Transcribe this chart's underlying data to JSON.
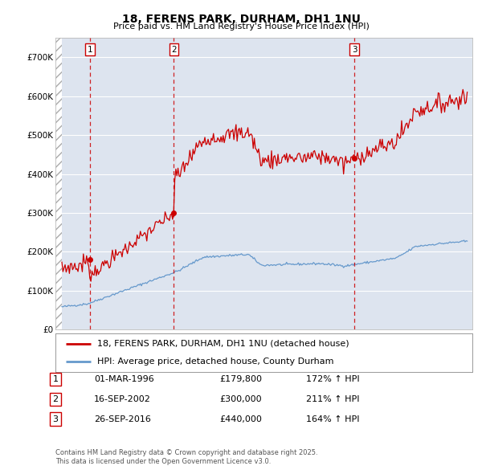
{
  "title": "18, FERENS PARK, DURHAM, DH1 1NU",
  "subtitle": "Price paid vs. HM Land Registry's House Price Index (HPI)",
  "sale_labels": [
    "1",
    "2",
    "3"
  ],
  "sale_pct": [
    "172% ↑ HPI",
    "211% ↑ HPI",
    "164% ↑ HPI"
  ],
  "sale_date_str": [
    "01-MAR-1996",
    "16-SEP-2002",
    "26-SEP-2016"
  ],
  "sale_price_str": [
    "£179,800",
    "£300,000",
    "£440,000"
  ],
  "sale_prices": [
    179800,
    300000,
    440000
  ],
  "sale_times": [
    1996.167,
    2002.708,
    2016.736
  ],
  "legend_line1": "18, FERENS PARK, DURHAM, DH1 1NU (detached house)",
  "legend_line2": "HPI: Average price, detached house, County Durham",
  "footer1": "Contains HM Land Registry data © Crown copyright and database right 2025.",
  "footer2": "This data is licensed under the Open Government Licence v3.0.",
  "line_color": "#cc0000",
  "hpi_color": "#6699cc",
  "vline_color": "#cc0000",
  "background_color": "#ffffff",
  "plot_bg_color": "#dde4ef",
  "grid_color": "#ffffff",
  "ylim": [
    0,
    750000
  ],
  "xlim": [
    1993.5,
    2025.9
  ],
  "yticks": [
    0,
    100000,
    200000,
    300000,
    400000,
    500000,
    600000,
    700000
  ],
  "ytick_labels": [
    "£0",
    "£100K",
    "£200K",
    "£300K",
    "£400K",
    "£500K",
    "£600K",
    "£700K"
  ]
}
